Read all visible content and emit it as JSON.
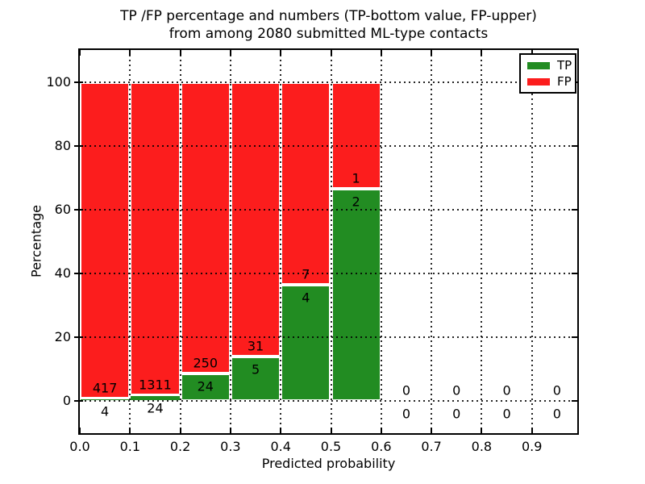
{
  "title": {
    "line1": "TP /FP percentage and numbers (TP-bottom value, FP-upper)",
    "line2": "from among 2080 submitted ML-type contacts"
  },
  "axes": {
    "xlabel": "Predicted probability",
    "ylabel": "Percentage",
    "x_ticks": [
      "0.0",
      "0.1",
      "0.2",
      "0.3",
      "0.4",
      "0.5",
      "0.6",
      "0.7",
      "0.8",
      "0.9"
    ],
    "y_ticks": [
      "0",
      "20",
      "40",
      "60",
      "80",
      "100"
    ],
    "grid": "dotted"
  },
  "legend": [
    {
      "label": "TP",
      "color": "#228c22"
    },
    {
      "label": "FP",
      "color": "#fc1d1d"
    }
  ],
  "chart_data": {
    "type": "bar",
    "stacked": true,
    "title": "TP /FP percentage and numbers (TP-bottom value, FP-upper) from among 2080 submitted ML-type contacts",
    "xlabel": "Predicted probability",
    "ylabel": "Percentage",
    "xlim": [
      0.0,
      1.0
    ],
    "ylim": [
      -10,
      110
    ],
    "bin_width": 0.1,
    "bin_starts": [
      0.0,
      0.1,
      0.2,
      0.3,
      0.4,
      0.5,
      0.6,
      0.7,
      0.8,
      0.9
    ],
    "series": [
      {
        "name": "TP",
        "color": "#228c22",
        "counts": [
          4,
          24,
          24,
          5,
          4,
          2,
          0,
          0,
          0,
          0
        ],
        "percent": [
          0.95,
          1.8,
          8.76,
          13.89,
          36.36,
          66.67,
          0,
          0,
          0,
          0
        ]
      },
      {
        "name": "FP",
        "color": "#fc1d1d",
        "counts": [
          417,
          1311,
          250,
          31,
          7,
          1,
          0,
          0,
          0,
          0
        ],
        "percent": [
          99.05,
          98.2,
          91.24,
          86.11,
          63.64,
          33.33,
          0,
          0,
          0,
          0
        ]
      }
    ],
    "total_contacts": 2080,
    "legend_position": "upper right",
    "bar_edge_color": "#ffffff"
  }
}
